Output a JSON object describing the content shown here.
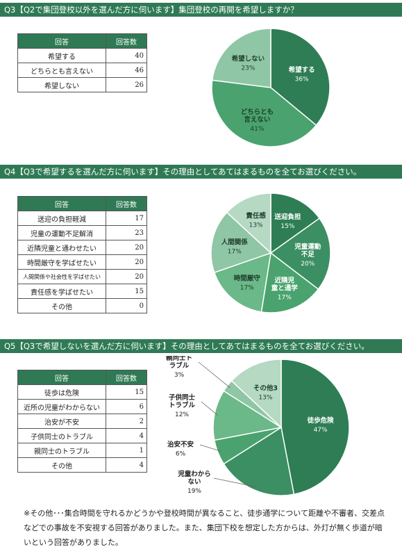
{
  "q3": {
    "title": "Q3【Q2で集団登校以外を選んだ方に伺います】集団登校の再開を希望しますか？",
    "table": {
      "headers": [
        "回答",
        "回答数"
      ],
      "rows": [
        {
          "label": "希望する",
          "value": "40"
        },
        {
          "label": "どちらとも言えない",
          "value": "46"
        },
        {
          "label": "希望しない",
          "value": "26"
        }
      ]
    }
  },
  "q4": {
    "title": "Q4【Q3で希望するを選んだ方に伺います】その理由としてあてはまるものを全てお選びください。",
    "table": {
      "headers": [
        "回答",
        "回答数"
      ],
      "rows": [
        {
          "label": "送迎の負担軽減",
          "value": "17"
        },
        {
          "label": "児童の運動不足解消",
          "value": "23"
        },
        {
          "label": "近隣児童と通わせたい",
          "value": "20"
        },
        {
          "label": "時間厳守を学ばせたい",
          "value": "20"
        },
        {
          "label": "人間関係や社会性を学ばせたい",
          "value": "20"
        },
        {
          "label": "責任感を学ばせたい",
          "value": "15"
        },
        {
          "label": "その他",
          "value": "0"
        }
      ]
    }
  },
  "q5": {
    "title": "Q5【Q3で希望しないを選んだ方に伺います】その理由としてあてはまるものを全てお選びください。",
    "table": {
      "headers": [
        "回答",
        "回答数"
      ],
      "rows": [
        {
          "label": "徒歩は危険",
          "value": "15"
        },
        {
          "label": "近所の児童がわからない",
          "value": "6"
        },
        {
          "label": "治安が不安",
          "value": "2"
        },
        {
          "label": "子供同士のトラブル",
          "value": "4"
        },
        {
          "label": "親同士のトラブル",
          "value": "1"
        },
        {
          "label": "その他",
          "value": "4"
        }
      ]
    }
  },
  "note": "※その他･･･集合時間を守れるかどうかや登校時間が異なること、徒歩通学について距離や不審者、交差点などでの事故を不安視する回答がありました。また、集団下校を想定した方からは、外灯が無く歩道が暗いという回答がありました。",
  "chart_data": [
    {
      "type": "pie",
      "slices": [
        {
          "label": "希望する",
          "value": 36,
          "pct": "36%",
          "color": "#2e7d55"
        },
        {
          "label": "どちらとも言えない",
          "value": 41,
          "pct": "41%",
          "color": "#4aa36e"
        },
        {
          "label": "希望しない",
          "value": 23,
          "pct": "23%",
          "color": "#8fc6a5"
        }
      ]
    },
    {
      "type": "pie",
      "slices": [
        {
          "label": "送迎負担",
          "value": 15,
          "pct": "15%",
          "color": "#2e7d55"
        },
        {
          "label": "児童運動不足",
          "value": 20,
          "pct": "20%",
          "color": "#3b8f62"
        },
        {
          "label": "近隣児童と通学",
          "value": 17,
          "pct": "17%",
          "color": "#4aa36e"
        },
        {
          "label": "時間厳守",
          "value": 17,
          "pct": "17%",
          "color": "#6bb888"
        },
        {
          "label": "人間関係",
          "value": 17,
          "pct": "17%",
          "color": "#8fc6a5"
        },
        {
          "label": "責任感",
          "value": 13,
          "pct": "13%",
          "color": "#b5d9c3"
        }
      ]
    },
    {
      "type": "pie",
      "slices": [
        {
          "label": "徒歩危険",
          "value": 47,
          "pct": "47%",
          "color": "#2e7d55"
        },
        {
          "label": "児童わからない",
          "value": 19,
          "pct": "19%",
          "color": "#3b8f62"
        },
        {
          "label": "治安不安",
          "value": 6,
          "pct": "6%",
          "color": "#4aa36e"
        },
        {
          "label": "子供同士トラブル",
          "value": 12,
          "pct": "12%",
          "color": "#6bb888"
        },
        {
          "label": "親同士トラブル",
          "value": 3,
          "pct": "3%",
          "color": "#8fc6a5"
        },
        {
          "label": "その他3",
          "value": 13,
          "pct": "13%",
          "color": "#b5d9c3"
        }
      ]
    }
  ]
}
